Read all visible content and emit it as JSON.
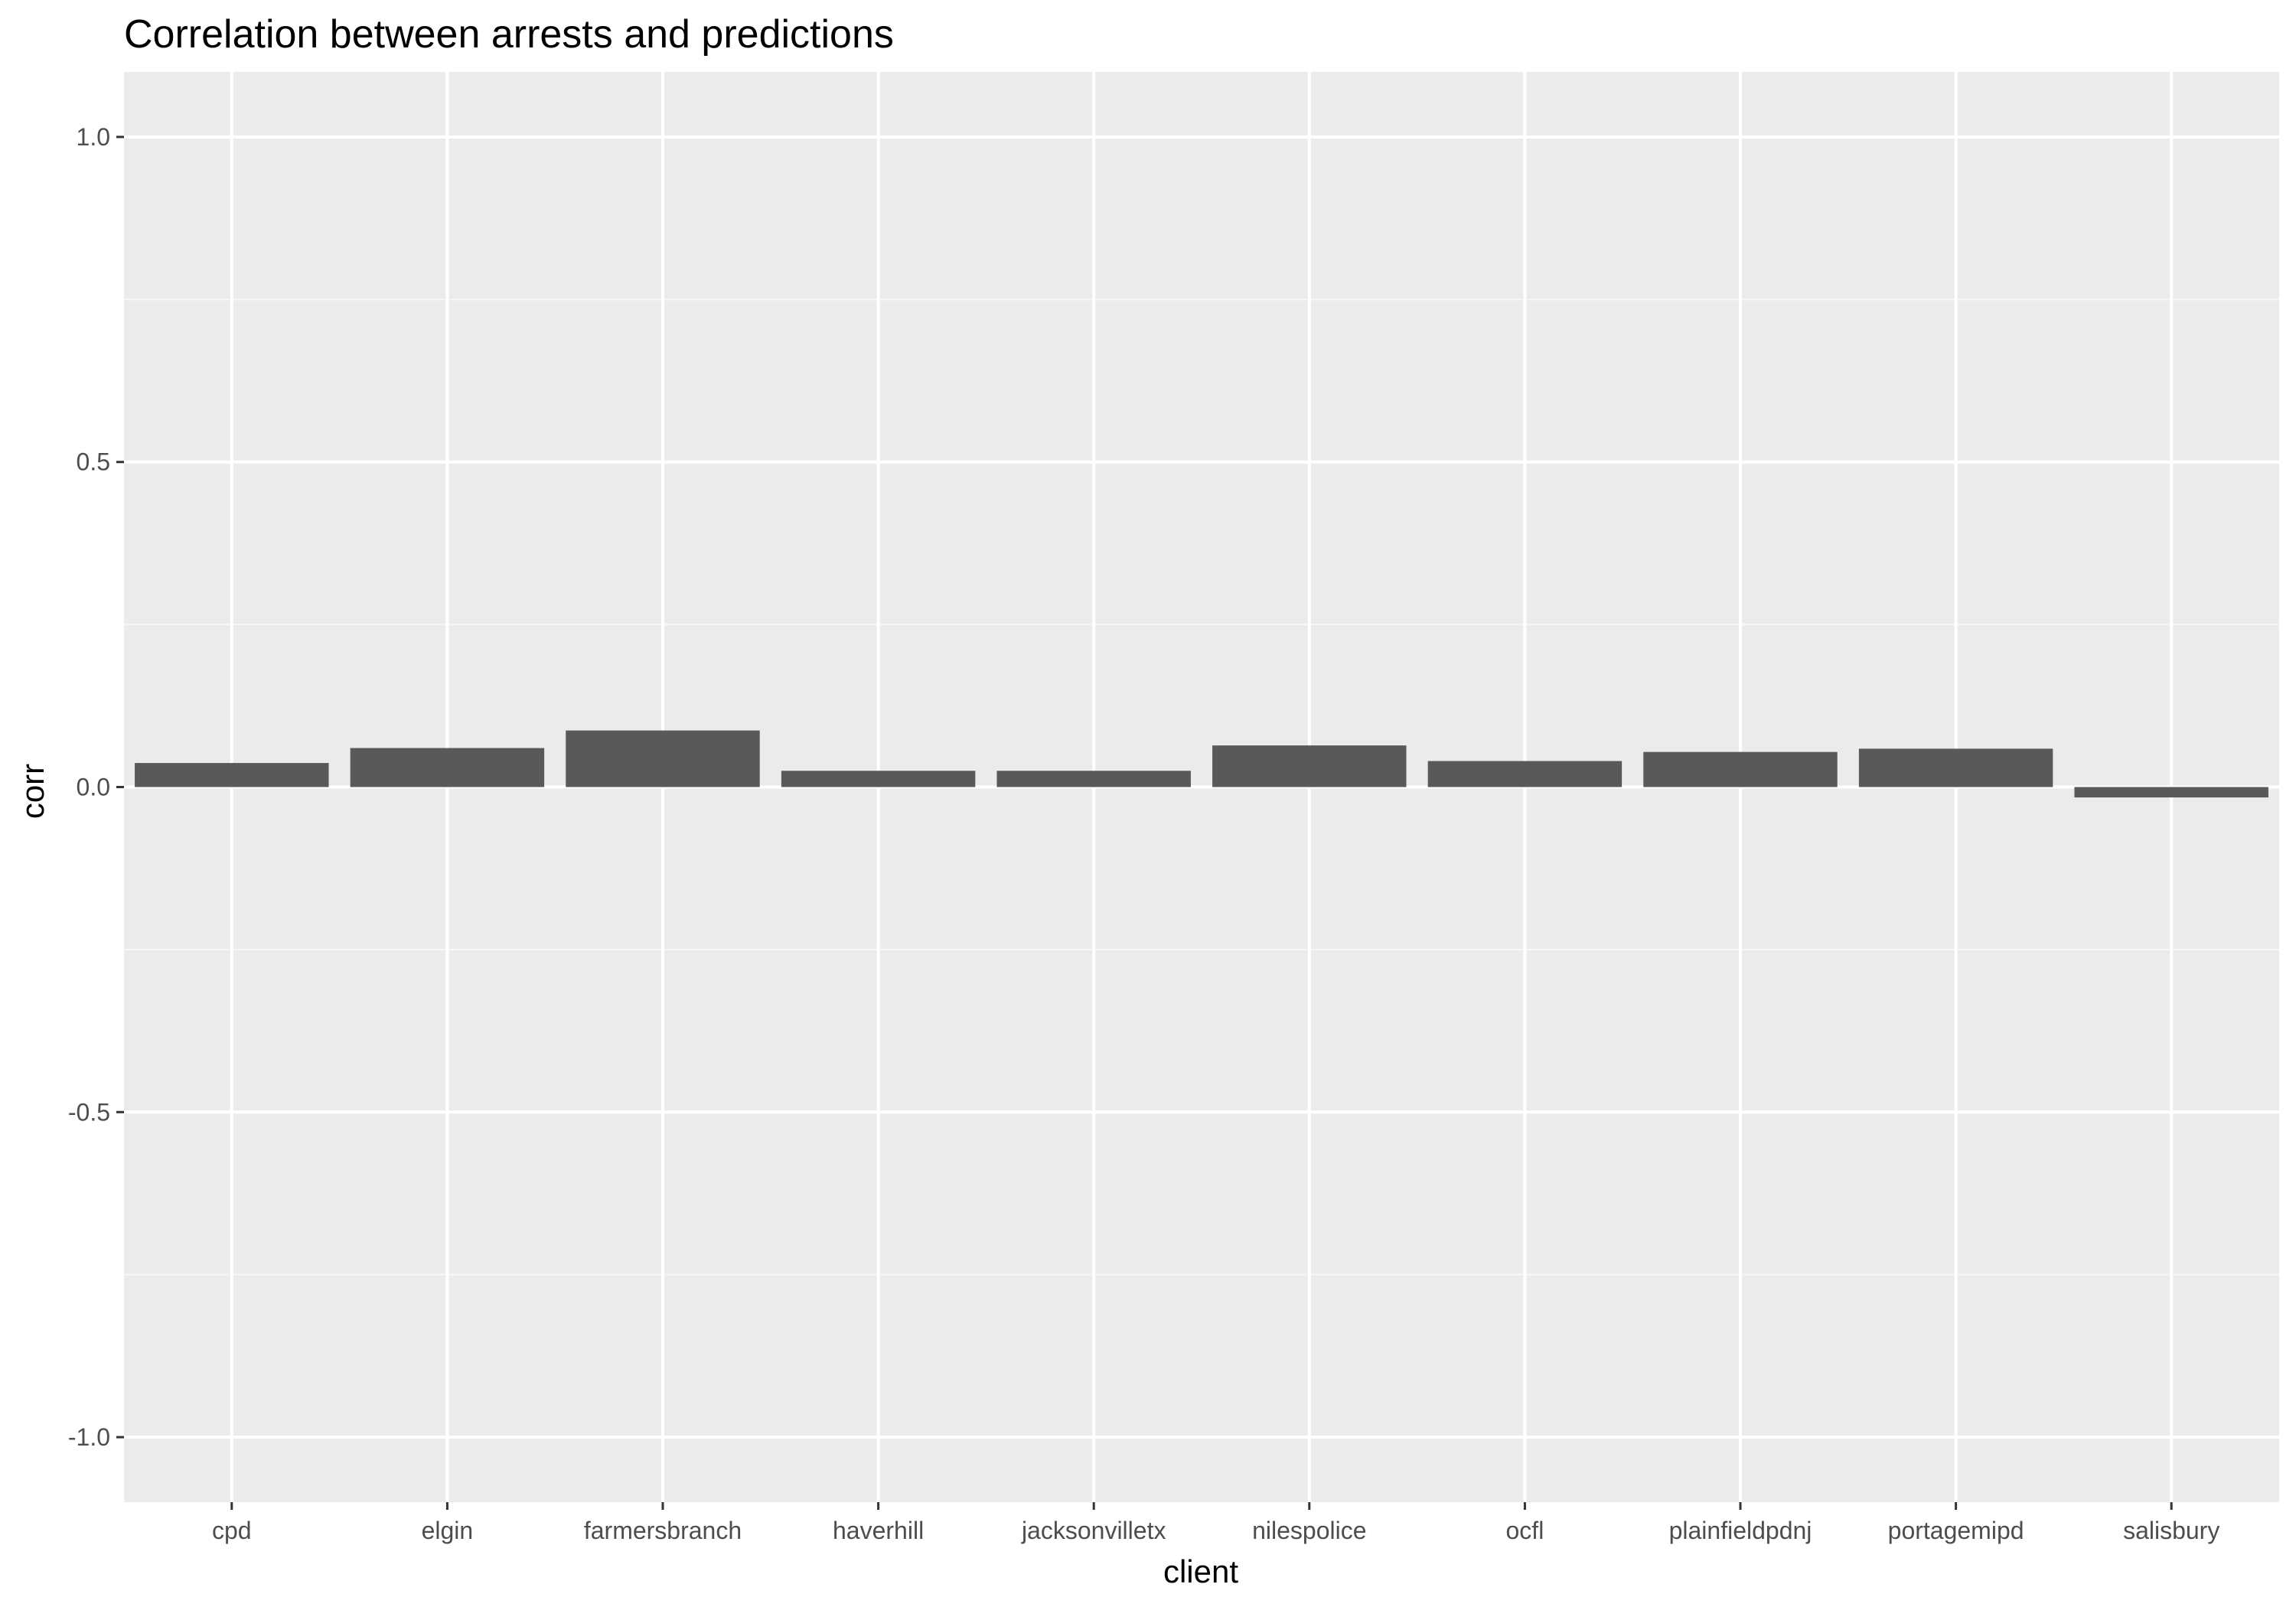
{
  "chart_data": {
    "type": "bar",
    "title": "Correlation between arrests and predictions",
    "xlabel": "client",
    "ylabel": "corr",
    "categories": [
      "cpd",
      "elgin",
      "farmersbranch",
      "haverhill",
      "jacksonvilletx",
      "nilespolice",
      "ocfl",
      "plainfieldpdnj",
      "portagemipd",
      "salisbury"
    ],
    "values": [
      0.037,
      0.06,
      0.087,
      0.025,
      0.025,
      0.064,
      0.04,
      0.054,
      0.059,
      -0.016
    ],
    "ylim": [
      -1.1,
      1.1
    ],
    "yticks": [
      -1.0,
      -0.5,
      0.0,
      0.5,
      1.0
    ],
    "ytick_labels": [
      "-1.0",
      "-0.5",
      "0.0",
      "0.5",
      "1.0"
    ],
    "grid": true,
    "colors": {
      "bar": "#595959",
      "panel": "#ebebeb",
      "grid_major": "#ffffff",
      "grid_minor": "#f7f7f7",
      "tick": "#333333",
      "tick_label": "#4d4d4d"
    }
  }
}
